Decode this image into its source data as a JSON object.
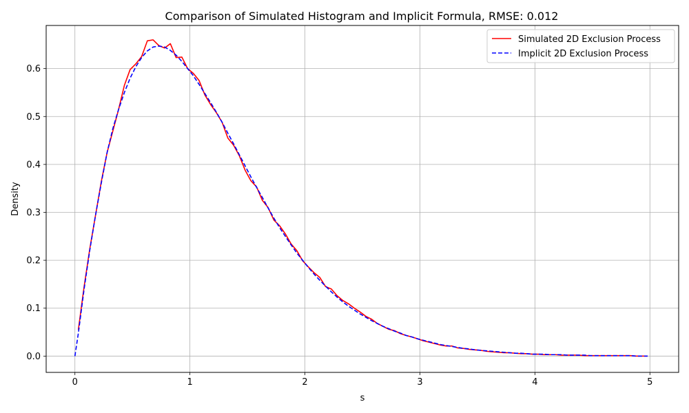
{
  "chart_data": {
    "type": "line",
    "title": "Comparison of Simulated Histogram and Implicit Formula, RMSE: 0.012",
    "xlabel": "s",
    "ylabel": "Density",
    "xlim": [
      -0.25,
      5.25
    ],
    "ylim": [
      -0.034,
      0.69
    ],
    "xticks": [
      0,
      1,
      2,
      3,
      4,
      5
    ],
    "yticks": [
      0.0,
      0.1,
      0.2,
      0.3,
      0.4,
      0.5,
      0.6
    ],
    "xtick_labels": [
      "0",
      "1",
      "2",
      "3",
      "4",
      "5"
    ],
    "ytick_labels": [
      "0.0",
      "0.1",
      "0.2",
      "0.3",
      "0.4",
      "0.5",
      "0.6"
    ],
    "grid": true,
    "legend_position": "top-right",
    "series": [
      {
        "name": "Simulated 2D Exclusion Process",
        "color": "#ff0000",
        "style": "solid",
        "x": [
          0.03,
          0.08,
          0.13,
          0.18,
          0.23,
          0.28,
          0.33,
          0.38,
          0.43,
          0.48,
          0.53,
          0.58,
          0.63,
          0.68,
          0.73,
          0.78,
          0.83,
          0.88,
          0.93,
          0.98,
          1.03,
          1.08,
          1.13,
          1.18,
          1.23,
          1.28,
          1.33,
          1.38,
          1.43,
          1.48,
          1.53,
          1.58,
          1.63,
          1.68,
          1.73,
          1.78,
          1.83,
          1.88,
          1.93,
          1.98,
          2.03,
          2.08,
          2.13,
          2.18,
          2.23,
          2.28,
          2.33,
          2.38,
          2.43,
          2.48,
          2.53,
          2.58,
          2.63,
          2.68,
          2.73,
          2.78,
          2.83,
          2.88,
          2.93,
          2.98,
          3.03,
          3.08,
          3.13,
          3.18,
          3.23,
          3.28,
          3.33,
          3.38,
          3.43,
          3.48,
          3.53,
          3.58,
          3.63,
          3.68,
          3.73,
          3.78,
          3.83,
          3.88,
          3.93,
          3.98,
          4.03,
          4.08,
          4.13,
          4.18,
          4.23,
          4.28,
          4.33,
          4.38,
          4.43,
          4.48,
          4.53,
          4.58,
          4.63,
          4.68,
          4.73,
          4.78,
          4.83,
          4.88,
          4.93,
          4.98
        ],
        "y": [
          0.055,
          0.145,
          0.225,
          0.295,
          0.365,
          0.425,
          0.47,
          0.515,
          0.565,
          0.598,
          0.61,
          0.625,
          0.658,
          0.66,
          0.648,
          0.643,
          0.652,
          0.623,
          0.624,
          0.6,
          0.59,
          0.575,
          0.545,
          0.525,
          0.508,
          0.488,
          0.455,
          0.44,
          0.418,
          0.388,
          0.366,
          0.353,
          0.325,
          0.31,
          0.284,
          0.272,
          0.255,
          0.234,
          0.22,
          0.199,
          0.186,
          0.174,
          0.164,
          0.145,
          0.14,
          0.126,
          0.116,
          0.109,
          0.1,
          0.092,
          0.083,
          0.077,
          0.068,
          0.062,
          0.056,
          0.053,
          0.047,
          0.043,
          0.04,
          0.036,
          0.032,
          0.029,
          0.026,
          0.023,
          0.021,
          0.021,
          0.017,
          0.016,
          0.014,
          0.013,
          0.012,
          0.01,
          0.009,
          0.008,
          0.007,
          0.007,
          0.006,
          0.005,
          0.005,
          0.004,
          0.004,
          0.003,
          0.003,
          0.003,
          0.002,
          0.002,
          0.002,
          0.002,
          0.001,
          0.001,
          0.001,
          0.001,
          0.001,
          0.001,
          0.001,
          0.001,
          0.001,
          0.0,
          0.0,
          0.0
        ]
      },
      {
        "name": "Implicit 2D Exclusion Process",
        "color": "#0000ff",
        "style": "dashed",
        "x": [
          0.0,
          0.03,
          0.08,
          0.13,
          0.18,
          0.23,
          0.28,
          0.33,
          0.38,
          0.43,
          0.48,
          0.53,
          0.58,
          0.63,
          0.68,
          0.73,
          0.78,
          0.83,
          0.88,
          0.93,
          0.98,
          1.03,
          1.08,
          1.13,
          1.18,
          1.23,
          1.28,
          1.33,
          1.38,
          1.43,
          1.48,
          1.53,
          1.58,
          1.63,
          1.68,
          1.73,
          1.78,
          1.83,
          1.88,
          1.93,
          1.98,
          2.03,
          2.08,
          2.13,
          2.18,
          2.23,
          2.28,
          2.33,
          2.38,
          2.43,
          2.48,
          2.53,
          2.58,
          2.63,
          2.68,
          2.73,
          2.78,
          2.83,
          2.88,
          2.93,
          2.98,
          3.03,
          3.08,
          3.13,
          3.18,
          3.23,
          3.28,
          3.33,
          3.38,
          3.43,
          3.48,
          3.53,
          3.58,
          3.63,
          3.68,
          3.73,
          3.78,
          3.83,
          3.88,
          3.93,
          3.98,
          4.03,
          4.08,
          4.13,
          4.18,
          4.23,
          4.28,
          4.33,
          4.38,
          4.43,
          4.48,
          4.53,
          4.58,
          4.63,
          4.68,
          4.73,
          4.78,
          4.83,
          4.88,
          4.93,
          4.98
        ],
        "y": [
          0.0,
          0.048,
          0.14,
          0.222,
          0.295,
          0.362,
          0.425,
          0.475,
          0.515,
          0.55,
          0.58,
          0.604,
          0.623,
          0.637,
          0.645,
          0.647,
          0.645,
          0.638,
          0.628,
          0.615,
          0.6,
          0.585,
          0.567,
          0.548,
          0.529,
          0.509,
          0.488,
          0.465,
          0.443,
          0.42,
          0.397,
          0.374,
          0.352,
          0.331,
          0.309,
          0.288,
          0.268,
          0.25,
          0.232,
          0.215,
          0.2,
          0.185,
          0.171,
          0.158,
          0.146,
          0.134,
          0.123,
          0.113,
          0.104,
          0.096,
          0.088,
          0.081,
          0.074,
          0.068,
          0.062,
          0.057,
          0.052,
          0.048,
          0.043,
          0.04,
          0.036,
          0.033,
          0.03,
          0.027,
          0.024,
          0.022,
          0.02,
          0.018,
          0.016,
          0.015,
          0.013,
          0.012,
          0.011,
          0.01,
          0.009,
          0.008,
          0.007,
          0.006,
          0.006,
          0.005,
          0.004,
          0.004,
          0.004,
          0.003,
          0.003,
          0.003,
          0.002,
          0.002,
          0.002,
          0.002,
          0.001,
          0.001,
          0.001,
          0.001,
          0.001,
          0.001,
          0.001,
          0.001,
          0.0,
          0.0,
          0.0
        ]
      }
    ]
  }
}
